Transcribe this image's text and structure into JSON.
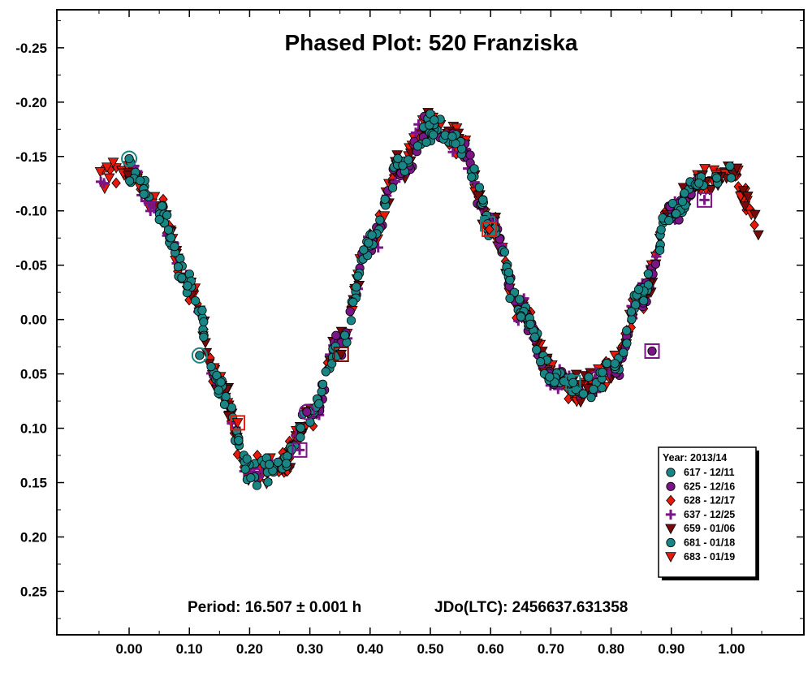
{
  "chart_data": {
    "type": "scatter",
    "title": "Phased Plot: 520 Franziska",
    "period_label": "Period: 16.507 ± 0.001 h",
    "epoch_label": "JDo(LTC): 2456637.631358",
    "xlabel": "",
    "ylabel": "",
    "xlim": [
      -0.12,
      1.12
    ],
    "ylim": [
      0.29,
      -0.285
    ],
    "y_inverted": true,
    "grid": false,
    "legend_position": "bottom-right",
    "legend_title": "Year: 2013/14",
    "x_ticks": [
      "0.00",
      "0.10",
      "0.20",
      "0.30",
      "0.40",
      "0.50",
      "0.60",
      "0.70",
      "0.80",
      "0.90",
      "1.00"
    ],
    "x_tick_values": [
      0,
      0.1,
      0.2,
      0.3,
      0.4,
      0.5,
      0.6,
      0.7,
      0.8,
      0.9,
      1.0
    ],
    "y_ticks": [
      "-0.25",
      "-0.20",
      "-0.15",
      "-0.10",
      "-0.05",
      "0.00",
      "0.05",
      "0.10",
      "0.15",
      "0.20",
      "0.25"
    ],
    "y_tick_values": [
      -0.25,
      -0.2,
      -0.15,
      -0.1,
      -0.05,
      0,
      0.05,
      0.1,
      0.15,
      0.2,
      0.25
    ],
    "light_curve_phase": [
      -0.05,
      0.0,
      0.05,
      0.1,
      0.15,
      0.2,
      0.25,
      0.3,
      0.35,
      0.4,
      0.45,
      0.5,
      0.55,
      0.6,
      0.65,
      0.7,
      0.75,
      0.8,
      0.85,
      0.9,
      0.95,
      1.0,
      1.05
    ],
    "light_curve_mag": [
      -0.13,
      -0.135,
      -0.1,
      -0.03,
      0.06,
      0.14,
      0.135,
      0.09,
      0.02,
      -0.07,
      -0.14,
      -0.18,
      -0.16,
      -0.09,
      -0.01,
      0.05,
      0.065,
      0.05,
      -0.02,
      -0.1,
      -0.125,
      -0.135,
      -0.085
    ],
    "series": [
      {
        "name": "617 - 12/11",
        "marker": "circle",
        "color": "#1a8585",
        "phase_range": [
          0.0,
          0.95
        ],
        "approx_points": 180
      },
      {
        "name": "625 - 12/16",
        "marker": "circle",
        "color": "#7a1487",
        "phase_range": [
          0.3,
          0.95
        ],
        "approx_points": 140
      },
      {
        "name": "628 - 12/17",
        "marker": "diamond",
        "color": "#e8190a",
        "phase_range": [
          -0.05,
          1.05
        ],
        "approx_points": 170
      },
      {
        "name": "637 - 12/25",
        "marker": "plus",
        "color": "#7a1487",
        "phase_range": [
          -0.05,
          0.95
        ],
        "approx_points": 110
      },
      {
        "name": "659 - 01/06",
        "marker": "triangle-down",
        "color": "#7a0a0a",
        "phase_range": [
          -0.02,
          1.05
        ],
        "approx_points": 160
      },
      {
        "name": "681 - 01/18",
        "marker": "circle",
        "color": "#1a8585",
        "phase_range": [
          0.0,
          1.0
        ],
        "approx_points": 150
      },
      {
        "name": "683 - 01/19",
        "marker": "triangle-down",
        "color": "#e8190a",
        "phase_range": [
          -0.05,
          1.05
        ],
        "approx_points": 170
      }
    ],
    "series_start_markers": [
      {
        "series": "617 - 12/11",
        "phase": 0.0,
        "mag": -0.148
      },
      {
        "series": "617 - 12/11",
        "phase": 0.117,
        "mag": 0.033
      },
      {
        "series": "617 - 12/11",
        "phase": 0.595,
        "mag": -0.088
      },
      {
        "series": "625 - 12/16",
        "phase": 0.295,
        "mag": 0.085
      },
      {
        "series": "625 - 12/16",
        "phase": 0.868,
        "mag": 0.029
      },
      {
        "series": "628 - 12/17",
        "phase": 0.598,
        "mag": -0.083
      },
      {
        "series": "637 - 12/25",
        "phase": 0.283,
        "mag": 0.12
      },
      {
        "series": "637 - 12/25",
        "phase": 0.955,
        "mag": -0.11
      },
      {
        "series": "659 - 01/06",
        "phase": 0.352,
        "mag": 0.032
      },
      {
        "series": "681 - 01/18",
        "phase": 0.737,
        "mag": 0.058
      },
      {
        "series": "683 - 01/19",
        "phase": 0.18,
        "mag": 0.095
      }
    ]
  }
}
